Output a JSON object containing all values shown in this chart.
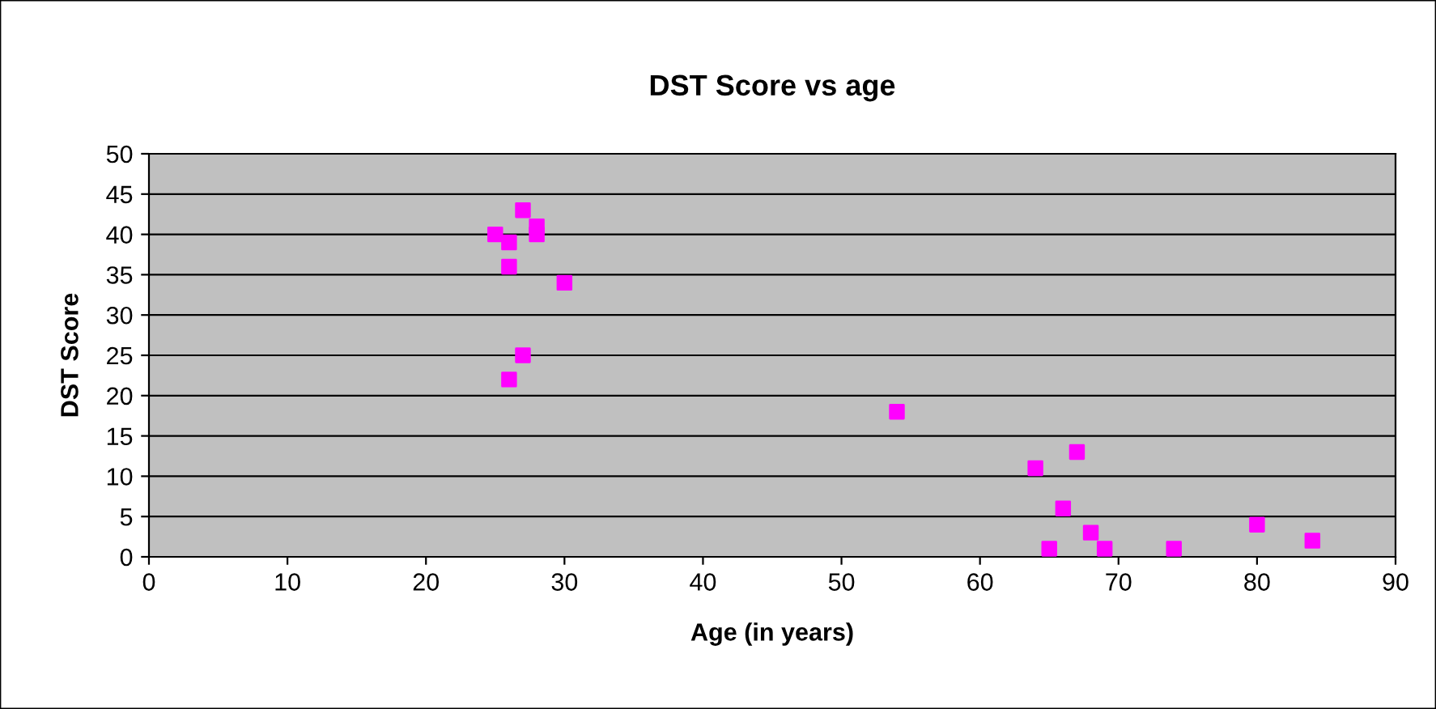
{
  "chart_data": {
    "type": "scatter",
    "title": "DST Score vs age",
    "xlabel": "Age (in years)",
    "ylabel": "DST Score",
    "x": [
      25,
      26,
      27,
      28,
      28,
      26,
      30,
      27,
      26,
      54,
      64,
      67,
      66,
      68,
      65,
      69,
      74,
      80,
      84
    ],
    "series": [
      {
        "color": "#ff00ff",
        "values": [
          40,
          39,
          43,
          41,
          40,
          36,
          34,
          25,
          22,
          18,
          11,
          13,
          6,
          3,
          1,
          1,
          1,
          4,
          2
        ]
      }
    ],
    "xlim": [
      0,
      90
    ],
    "xticks": [
      0,
      10,
      20,
      30,
      40,
      50,
      60,
      70,
      80,
      90
    ],
    "ylim": [
      0,
      50
    ],
    "yticks": [
      0,
      5,
      10,
      15,
      20,
      25,
      30,
      35,
      40,
      45,
      50
    ],
    "grid": "y",
    "marker": "square",
    "legend": false
  }
}
